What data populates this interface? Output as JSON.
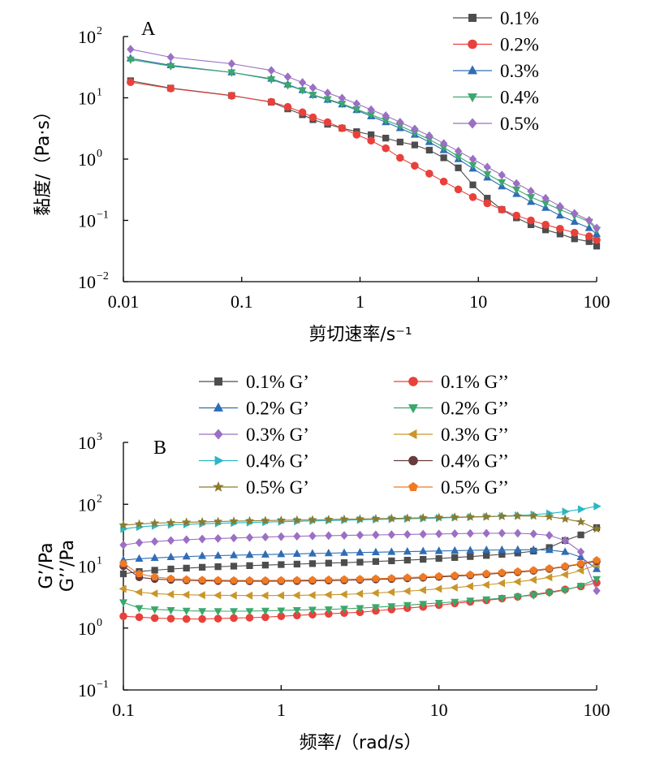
{
  "chart_data": [
    {
      "type": "line",
      "panel_label": "A",
      "xlabel": "剪切速率/s⁻¹",
      "ylabel": "黏度/（Pa·s）",
      "xscale": "log",
      "yscale": "log",
      "xlim": [
        0.01,
        100
      ],
      "ylim": [
        0.01,
        100
      ],
      "xticks": [
        "0.01",
        "0.1",
        "1",
        "10",
        "100"
      ],
      "yticks": [
        {
          "value": 0.01,
          "base": "10",
          "exp": "−2"
        },
        {
          "value": 0.1,
          "base": "10",
          "exp": "−1"
        },
        {
          "value": 1,
          "base": "10",
          "exp": "0"
        },
        {
          "value": 10,
          "base": "10",
          "exp": "1"
        },
        {
          "value": 100,
          "base": "10",
          "exp": "2"
        }
      ],
      "legend_position": "top-right",
      "x": [
        0.0115,
        0.0251,
        0.0822,
        0.178,
        0.245,
        0.326,
        0.4,
        0.532,
        0.705,
        0.936,
        1.24,
        1.65,
        2.18,
        2.9,
        3.85,
        5.1,
        6.77,
        8.99,
        11.9,
        15.8,
        21,
        27.8,
        37,
        49,
        65,
        86.3,
        100
      ],
      "series": [
        {
          "name": "0.1%",
          "marker": "square",
          "color": "#4d4d4d",
          "values": [
            19,
            14.4,
            10.9,
            8.5,
            6.6,
            5.3,
            4.4,
            3.7,
            3.2,
            2.8,
            2.5,
            2.2,
            1.9,
            1.7,
            1.4,
            1.05,
            0.72,
            0.38,
            0.23,
            0.15,
            0.11,
            0.085,
            0.07,
            0.06,
            0.05,
            0.045,
            0.038
          ]
        },
        {
          "name": "0.2%",
          "marker": "circle",
          "color": "#e8413b",
          "values": [
            18,
            14.2,
            10.8,
            8.6,
            7.1,
            5.8,
            4.8,
            4.0,
            3.2,
            2.5,
            2.0,
            1.5,
            1.05,
            0.78,
            0.58,
            0.43,
            0.32,
            0.24,
            0.19,
            0.15,
            0.12,
            0.1,
            0.085,
            0.073,
            0.063,
            0.055,
            0.048
          ]
        },
        {
          "name": "0.3%",
          "marker": "triangle-up",
          "color": "#2f6db5",
          "values": [
            44,
            34,
            26,
            20.5,
            16.5,
            13.4,
            11.1,
            9.3,
            7.8,
            6.3,
            5.0,
            4.0,
            3.2,
            2.5,
            1.9,
            1.4,
            1.0,
            0.7,
            0.5,
            0.36,
            0.27,
            0.2,
            0.16,
            0.12,
            0.095,
            0.075,
            0.06
          ]
        },
        {
          "name": "0.4%",
          "marker": "triangle-down",
          "color": "#3aa86b",
          "values": [
            42,
            33,
            26,
            20,
            16,
            13.3,
            11.2,
            9.5,
            8,
            6.5,
            5.3,
            4.3,
            3.5,
            2.7,
            2.1,
            1.55,
            1.1,
            0.8,
            0.57,
            0.42,
            0.32,
            0.24,
            0.19,
            0.15,
            0.12,
            0.095,
            0.07
          ]
        },
        {
          "name": "0.5%",
          "marker": "diamond",
          "color": "#9b6fc3",
          "values": [
            62,
            46,
            36,
            28,
            22,
            17.8,
            14.6,
            12,
            9.9,
            8.0,
            6.4,
            5.1,
            4.0,
            3.1,
            2.4,
            1.8,
            1.35,
            1.0,
            0.74,
            0.55,
            0.4,
            0.3,
            0.23,
            0.17,
            0.13,
            0.1,
            0.075
          ]
        }
      ]
    },
    {
      "type": "line",
      "panel_label": "B",
      "xlabel": "频率/（rad/s）",
      "ylabel": "G'/Pa G''/Pa",
      "ylabel_lines": [
        "G’/Pa",
        "G’’/Pa"
      ],
      "xscale": "log",
      "yscale": "log",
      "xlim": [
        0.1,
        100
      ],
      "ylim": [
        0.1,
        1000
      ],
      "xticks": [
        "0.1",
        "1",
        "10",
        "100"
      ],
      "yticks": [
        {
          "value": 0.1,
          "base": "10",
          "exp": "−1"
        },
        {
          "value": 1,
          "base": "10",
          "exp": "0"
        },
        {
          "value": 10,
          "base": "10",
          "exp": "1"
        },
        {
          "value": 100,
          "base": "10",
          "exp": "2"
        },
        {
          "value": 1000,
          "base": "10",
          "exp": "3"
        }
      ],
      "legend_position": "top (two columns)",
      "x": [
        0.1,
        0.126,
        0.158,
        0.2,
        0.251,
        0.316,
        0.398,
        0.501,
        0.631,
        0.794,
        1,
        1.26,
        1.58,
        2,
        2.51,
        3.16,
        3.98,
        5.01,
        6.31,
        7.94,
        10,
        12.6,
        15.8,
        20,
        25.1,
        31.6,
        39.8,
        50.1,
        63.1,
        79.4,
        100
      ],
      "series": [
        {
          "name": "0.1% G’",
          "marker": "square",
          "color": "#4d4d4d",
          "values": [
            7.5,
            8.2,
            8.6,
            9.0,
            9.3,
            9.6,
            9.8,
            10.0,
            10.2,
            10.4,
            10.6,
            10.8,
            11.0,
            11.2,
            11.4,
            11.6,
            11.9,
            12.2,
            12.5,
            12.9,
            13.3,
            13.8,
            14.3,
            14.9,
            15.5,
            16.3,
            17.5,
            20,
            26,
            32,
            42
          ]
        },
        {
          "name": "0.1% G’’",
          "marker": "circle",
          "color": "#e8413b",
          "values": [
            1.55,
            1.5,
            1.45,
            1.42,
            1.4,
            1.4,
            1.42,
            1.45,
            1.47,
            1.5,
            1.55,
            1.6,
            1.65,
            1.7,
            1.75,
            1.8,
            1.9,
            2.0,
            2.1,
            2.2,
            2.35,
            2.5,
            2.65,
            2.8,
            3.0,
            3.2,
            3.5,
            3.8,
            4.2,
            4.7,
            5.4
          ]
        },
        {
          "name": "0.2% G’",
          "marker": "triangle-up",
          "color": "#2f6db5",
          "values": [
            12.5,
            13.2,
            13.6,
            14.0,
            14.3,
            14.6,
            14.8,
            15.0,
            15.2,
            15.4,
            15.6,
            15.8,
            16.0,
            16.2,
            16.4,
            16.6,
            16.8,
            17.0,
            17.2,
            17.4,
            17.6,
            17.8,
            18.0,
            18.2,
            18.3,
            18.4,
            18.4,
            18.2,
            17,
            14,
            9
          ]
        },
        {
          "name": "0.2% G’’",
          "marker": "triangle-down",
          "color": "#3aa86b",
          "values": [
            2.6,
            2.1,
            2.0,
            1.95,
            1.9,
            1.88,
            1.87,
            1.87,
            1.88,
            1.9,
            1.92,
            1.95,
            1.98,
            2.0,
            2.05,
            2.1,
            2.17,
            2.25,
            2.35,
            2.45,
            2.55,
            2.65,
            2.78,
            2.9,
            3.05,
            3.2,
            3.4,
            3.7,
            4.1,
            4.8,
            6.2
          ]
        },
        {
          "name": "0.3% G’",
          "marker": "diamond",
          "color": "#9b6fc3",
          "values": [
            22,
            24,
            25,
            26,
            26.8,
            27.5,
            28,
            28.5,
            29,
            29.5,
            30,
            30.4,
            30.8,
            31.1,
            31.4,
            31.7,
            32,
            32.3,
            32.6,
            32.9,
            33.2,
            33.5,
            33.8,
            34,
            34.1,
            34,
            33.2,
            31.5,
            26,
            17,
            4
          ]
        },
        {
          "name": "0.3% G’’",
          "marker": "triangle-left",
          "color": "#c9962a",
          "values": [
            4.3,
            3.8,
            3.6,
            3.5,
            3.45,
            3.4,
            3.38,
            3.36,
            3.35,
            3.35,
            3.36,
            3.38,
            3.4,
            3.45,
            3.5,
            3.58,
            3.68,
            3.8,
            3.95,
            4.1,
            4.3,
            4.5,
            4.75,
            5.0,
            5.3,
            5.6,
            6.0,
            6.6,
            7.3,
            8.5,
            10.5
          ]
        },
        {
          "name": "0.4% G’",
          "marker": "triangle-right",
          "color": "#2bb7c4",
          "values": [
            40,
            43,
            45,
            46.5,
            47.5,
            48.5,
            49.3,
            50,
            50.8,
            51.5,
            52.3,
            53,
            53.8,
            54.5,
            55.3,
            56,
            56.8,
            57.5,
            58.3,
            59,
            60,
            61,
            62,
            63,
            64.5,
            66,
            68,
            71,
            76,
            83,
            93
          ]
        },
        {
          "name": "0.4% G’’",
          "marker": "circle",
          "color": "#6b3a3a",
          "values": [
            10,
            6.6,
            6.2,
            6.0,
            5.9,
            5.8,
            5.75,
            5.7,
            5.7,
            5.7,
            5.72,
            5.75,
            5.8,
            5.85,
            5.9,
            6.0,
            6.1,
            6.2,
            6.35,
            6.5,
            6.7,
            6.9,
            7.1,
            7.4,
            7.7,
            8.0,
            8.4,
            9.0,
            9.8,
            10.8,
            12
          ]
        },
        {
          "name": "0.5% G’",
          "marker": "star",
          "color": "#8c7b2e",
          "values": [
            46,
            48,
            49.5,
            50.5,
            51.3,
            52,
            52.7,
            53.3,
            53.9,
            54.5,
            55,
            55.5,
            56,
            56.6,
            57.2,
            57.8,
            58.4,
            59,
            59.7,
            60.4,
            61.1,
            61.8,
            62.5,
            63.2,
            64,
            64.6,
            64.8,
            63,
            58,
            52,
            40
          ]
        },
        {
          "name": "0.5% G’’",
          "marker": "pentagon",
          "color": "#f07a24",
          "values": [
            11,
            7.5,
            6.7,
            6.3,
            6.1,
            6.0,
            5.95,
            5.9,
            5.9,
            5.9,
            5.92,
            5.95,
            6.0,
            6.05,
            6.12,
            6.2,
            6.3,
            6.4,
            6.55,
            6.7,
            6.9,
            7.1,
            7.3,
            7.6,
            7.9,
            8.2,
            8.6,
            9.2,
            10,
            11,
            12.5
          ]
        }
      ]
    }
  ]
}
